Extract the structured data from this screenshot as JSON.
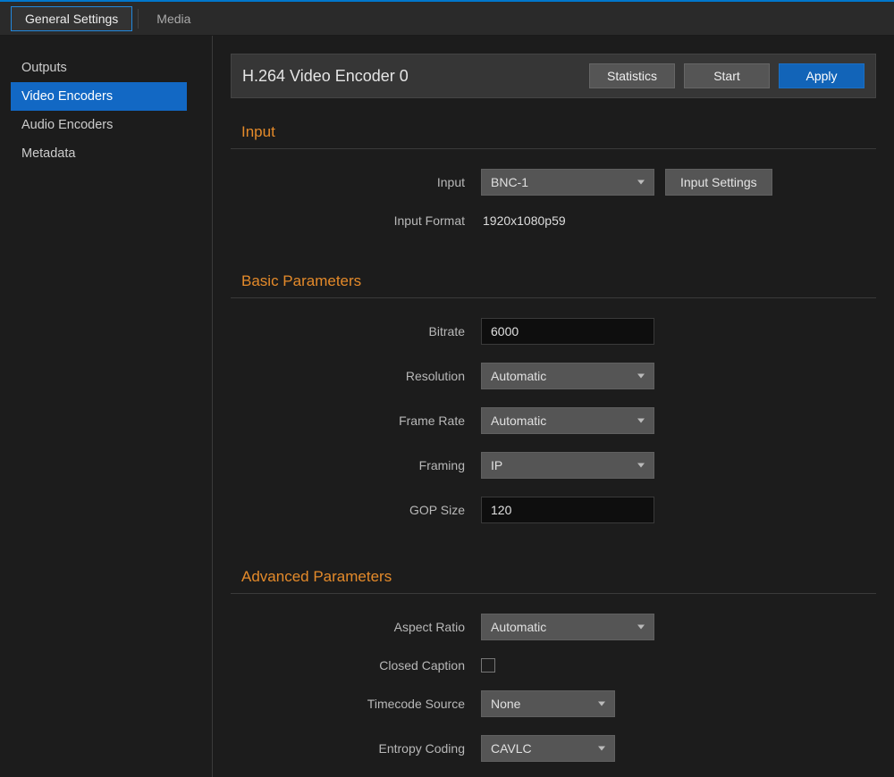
{
  "topTabs": {
    "generalSettings": "General Settings",
    "media": "Media"
  },
  "sidebar": {
    "outputs": "Outputs",
    "videoEncoders": "Video Encoders",
    "audioEncoders": "Audio Encoders",
    "metadata": "Metadata"
  },
  "header": {
    "title": "H.264 Video Encoder 0",
    "statistics": "Statistics",
    "start": "Start",
    "apply": "Apply"
  },
  "sections": {
    "input": {
      "title": "Input",
      "fields": {
        "input": {
          "label": "Input",
          "value": "BNC-1"
        },
        "inputSettingsBtn": "Input Settings",
        "inputFormat": {
          "label": "Input Format",
          "value": "1920x1080p59"
        }
      }
    },
    "basic": {
      "title": "Basic Parameters",
      "fields": {
        "bitrate": {
          "label": "Bitrate",
          "value": "6000"
        },
        "resolution": {
          "label": "Resolution",
          "value": "Automatic"
        },
        "frameRate": {
          "label": "Frame Rate",
          "value": "Automatic"
        },
        "framing": {
          "label": "Framing",
          "value": "IP"
        },
        "gopSize": {
          "label": "GOP Size",
          "value": "120"
        }
      }
    },
    "advanced": {
      "title": "Advanced Parameters",
      "fields": {
        "aspectRatio": {
          "label": "Aspect Ratio",
          "value": "Automatic"
        },
        "closedCaption": {
          "label": "Closed Caption",
          "checked": false
        },
        "timecodeSource": {
          "label": "Timecode Source",
          "value": "None"
        },
        "entropyCoding": {
          "label": "Entropy Coding",
          "value": "CAVLC"
        }
      }
    }
  },
  "colors": {
    "accentBlue": "#1268c4",
    "accentOrange": "#e48a2a",
    "bg": "#1c1c1c",
    "panel": "#363636",
    "control": "#555555",
    "input": "#0e0e0e",
    "text": "#cccccc"
  }
}
